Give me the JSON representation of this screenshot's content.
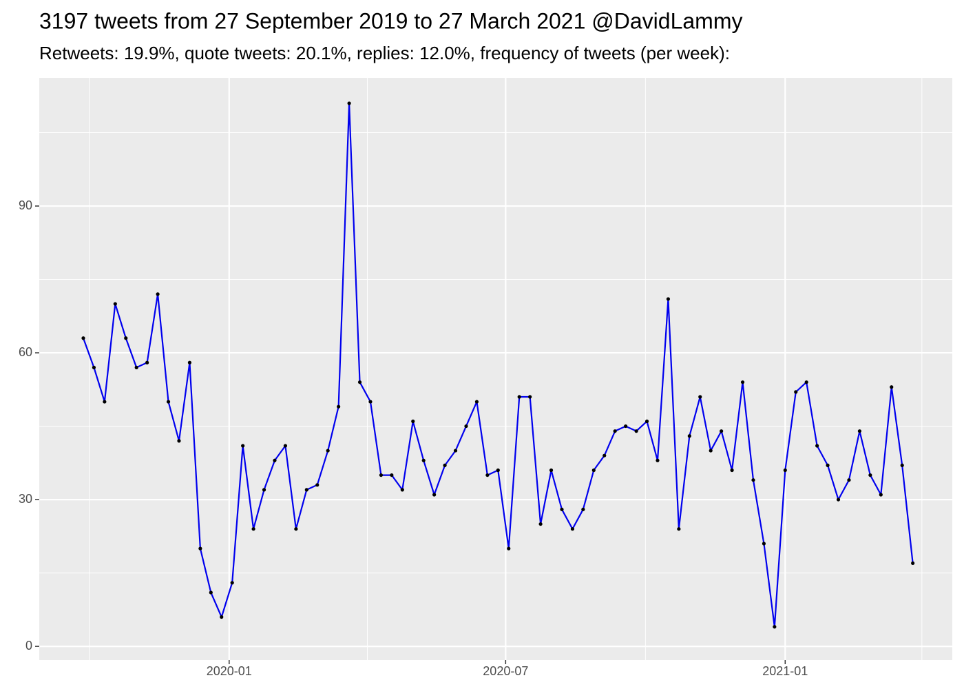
{
  "chart_data": {
    "type": "line",
    "title": "3197 tweets from 27 September 2019 to 27 March 2021 @DavidLammy",
    "subtitle": "Retweets: 19.9%, quote tweets: 20.1%, replies: 12.0%, frequency of tweets (per week):",
    "x": [
      "2019-09-27",
      "2019-10-04",
      "2019-10-11",
      "2019-10-18",
      "2019-10-25",
      "2019-11-01",
      "2019-11-08",
      "2019-11-15",
      "2019-11-22",
      "2019-11-29",
      "2019-12-06",
      "2019-12-13",
      "2019-12-20",
      "2019-12-27",
      "2020-01-03",
      "2020-01-10",
      "2020-01-17",
      "2020-01-24",
      "2020-01-31",
      "2020-02-07",
      "2020-02-14",
      "2020-02-21",
      "2020-02-28",
      "2020-03-06",
      "2020-03-13",
      "2020-03-20",
      "2020-03-27",
      "2020-04-03",
      "2020-04-10",
      "2020-04-17",
      "2020-04-24",
      "2020-05-01",
      "2020-05-08",
      "2020-05-15",
      "2020-05-22",
      "2020-05-29",
      "2020-06-05",
      "2020-06-12",
      "2020-06-19",
      "2020-06-26",
      "2020-07-03",
      "2020-07-10",
      "2020-07-17",
      "2020-07-24",
      "2020-07-31",
      "2020-08-07",
      "2020-08-14",
      "2020-08-21",
      "2020-08-28",
      "2020-09-04",
      "2020-09-11",
      "2020-09-18",
      "2020-09-25",
      "2020-10-02",
      "2020-10-09",
      "2020-10-16",
      "2020-10-23",
      "2020-10-30",
      "2020-11-06",
      "2020-11-13",
      "2020-11-20",
      "2020-11-27",
      "2020-12-04",
      "2020-12-11",
      "2020-12-18",
      "2020-12-25",
      "2021-01-01",
      "2021-01-08",
      "2021-01-15",
      "2021-01-22",
      "2021-01-29",
      "2021-02-05",
      "2021-02-12",
      "2021-02-19",
      "2021-02-26",
      "2021-03-05",
      "2021-03-12",
      "2021-03-19",
      "2021-03-26"
    ],
    "series": [
      {
        "color": "#0000ee",
        "point_color": "#000000",
        "values": [
          63,
          57,
          50,
          70,
          63,
          57,
          58,
          72,
          50,
          42,
          58,
          20,
          11,
          6,
          13,
          41,
          24,
          32,
          38,
          41,
          24,
          32,
          33,
          40,
          49,
          111,
          54,
          50,
          35,
          35,
          32,
          46,
          38,
          31,
          37,
          40,
          45,
          50,
          35,
          36,
          20,
          51,
          51,
          25,
          36,
          28,
          24,
          28,
          36,
          39,
          44,
          45,
          44,
          46,
          38,
          71,
          24,
          43,
          51,
          40,
          44,
          36,
          54,
          34,
          21,
          4,
          36,
          52,
          54,
          41,
          37,
          30,
          34,
          44,
          35,
          31,
          53,
          37,
          17
        ]
      }
    ],
    "xlim": [
      "2019-08-29",
      "2021-04-21"
    ],
    "xticks": [
      "2020-01",
      "2020-07",
      "2021-01"
    ],
    "x_minor_breaks": [
      "2019-10",
      "2020-04",
      "2020-10",
      "2021-04"
    ],
    "ylim": [
      -2.8,
      116.2
    ],
    "yticks": [
      0,
      30,
      60,
      90
    ],
    "y_minor_breaks": [
      15,
      45,
      75,
      105
    ],
    "grid": true,
    "panel_color": "#ebebeb"
  }
}
